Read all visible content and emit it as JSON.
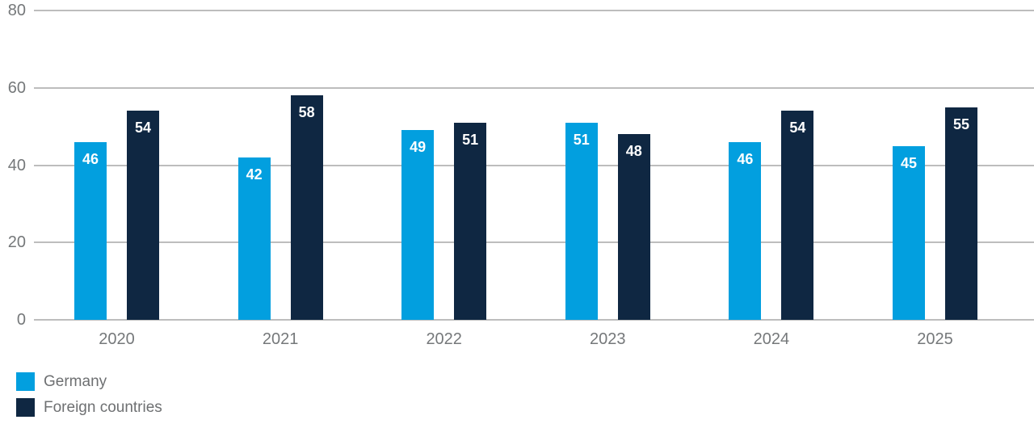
{
  "chart_data": {
    "type": "bar",
    "title": "",
    "xlabel": "",
    "ylabel": "",
    "categories": [
      "2020",
      "2021",
      "2022",
      "2023",
      "2024",
      "2025"
    ],
    "series": [
      {
        "name": "Germany",
        "color": "#029fdf",
        "values": [
          46,
          42,
          49,
          51,
          46,
          45
        ]
      },
      {
        "name": "Foreign countries",
        "color": "#0f2742",
        "values": [
          54,
          58,
          51,
          48,
          54,
          55
        ]
      }
    ],
    "ylim": [
      0,
      80
    ],
    "yticks": [
      80,
      60,
      40,
      20,
      0
    ],
    "grid": true,
    "legend_position": "bottom-left",
    "value_label_position": "inside-top"
  },
  "colors": {
    "background": "#ffffff",
    "gridline": "#bdbdbd",
    "axis_text": "#75787a",
    "value_label_text": "#ffffff",
    "legend_text": "#6e7072"
  }
}
